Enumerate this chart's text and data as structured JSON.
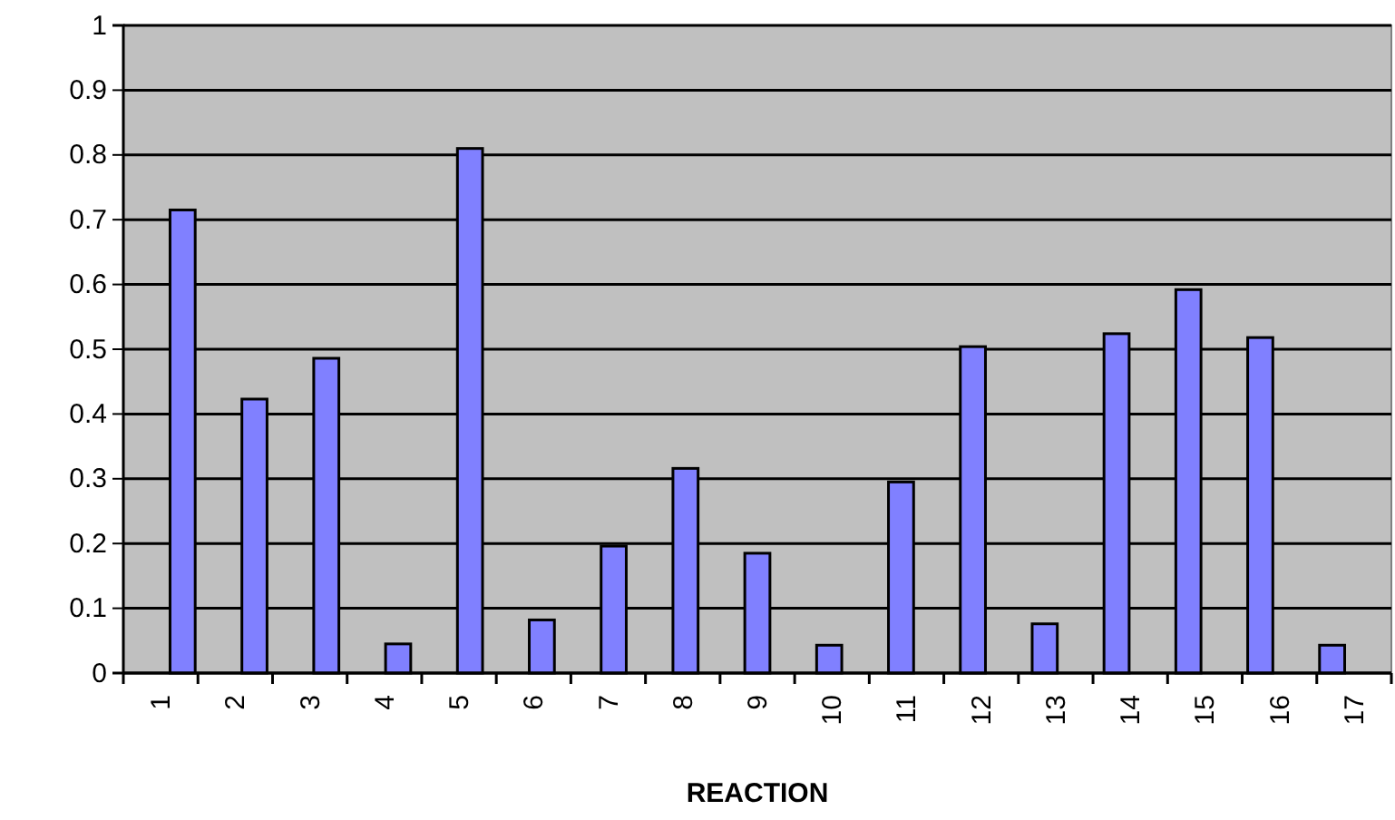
{
  "chart_data": {
    "type": "bar",
    "xlabel": "REACTION",
    "categories": [
      "1",
      "2",
      "3",
      "4",
      "5",
      "6",
      "7",
      "8",
      "9",
      "10",
      "11",
      "12",
      "13",
      "14",
      "15",
      "16",
      "17"
    ],
    "values": [
      0.715,
      0.423,
      0.486,
      0.045,
      0.81,
      0.082,
      0.196,
      0.316,
      0.185,
      0.043,
      0.295,
      0.504,
      0.076,
      0.524,
      0.592,
      0.518,
      0.043
    ],
    "color": "#8080ff",
    "ylim": [
      0,
      1
    ],
    "yticks": [
      0,
      0.1,
      0.2,
      0.3,
      0.4,
      0.5,
      0.6,
      0.7,
      0.8,
      0.9,
      1
    ],
    "grid": "y"
  }
}
